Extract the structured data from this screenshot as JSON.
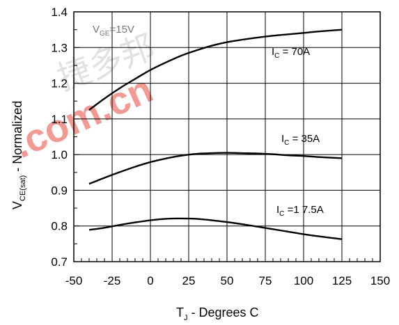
{
  "chart_data": {
    "type": "line",
    "title": "",
    "xlabel": {
      "main": "T",
      "sub": "J",
      "rest": " - Degrees C"
    },
    "ylabel": {
      "main": "V",
      "sub": "CE(sat)",
      "rest": " - Normalized"
    },
    "xlim": [
      -50,
      150
    ],
    "ylim": [
      0.7,
      1.4
    ],
    "xticks": [
      -50,
      -25,
      0,
      25,
      50,
      75,
      100,
      125,
      150
    ],
    "yticks": [
      0.7,
      0.8,
      0.9,
      1.0,
      1.1,
      1.2,
      1.3,
      1.4
    ],
    "xtick_labels": [
      "-50",
      "-25",
      "0",
      "25",
      "50",
      "75",
      "100",
      "125",
      "150"
    ],
    "ytick_labels": [
      "0.7",
      "0.8",
      "0.9",
      "1.0",
      "1.1",
      "1.2",
      "1.3",
      "1.4"
    ],
    "grid": true,
    "condition": {
      "main": "V",
      "sub": "GE",
      "rest": "=15V"
    },
    "series": [
      {
        "name": "70A",
        "label": {
          "main": "I",
          "sub": "C",
          "rest": " = 70A"
        },
        "x": [
          -40,
          -30,
          -20,
          -10,
          0,
          10,
          20,
          30,
          40,
          50,
          60,
          70,
          80,
          90,
          100,
          110,
          125
        ],
        "y": [
          1.125,
          1.157,
          1.186,
          1.212,
          1.237,
          1.258,
          1.277,
          1.292,
          1.305,
          1.315,
          1.322,
          1.328,
          1.333,
          1.337,
          1.341,
          1.345,
          1.35
        ]
      },
      {
        "name": "35A",
        "label": {
          "main": "I",
          "sub": "C",
          "rest": " = 35A"
        },
        "x": [
          -40,
          -30,
          -20,
          -10,
          0,
          10,
          20,
          30,
          40,
          50,
          60,
          70,
          80,
          90,
          100,
          110,
          125
        ],
        "y": [
          0.918,
          0.935,
          0.951,
          0.966,
          0.979,
          0.989,
          0.997,
          1.002,
          1.004,
          1.005,
          1.004,
          1.003,
          1.001,
          0.998,
          0.996,
          0.993,
          0.99
        ]
      },
      {
        "name": "17.5A",
        "label": {
          "main": "I",
          "sub": "C",
          "rest": " =1 7.5A"
        },
        "x": [
          -40,
          -30,
          -20,
          -10,
          0,
          10,
          20,
          30,
          40,
          50,
          60,
          70,
          80,
          90,
          100,
          110,
          125
        ],
        "y": [
          0.789,
          0.795,
          0.803,
          0.81,
          0.816,
          0.82,
          0.821,
          0.82,
          0.816,
          0.811,
          0.805,
          0.798,
          0.791,
          0.784,
          0.777,
          0.771,
          0.763
        ]
      }
    ]
  },
  "watermark": {
    "domain": ".com.cn",
    "chars": "捷多邦"
  }
}
